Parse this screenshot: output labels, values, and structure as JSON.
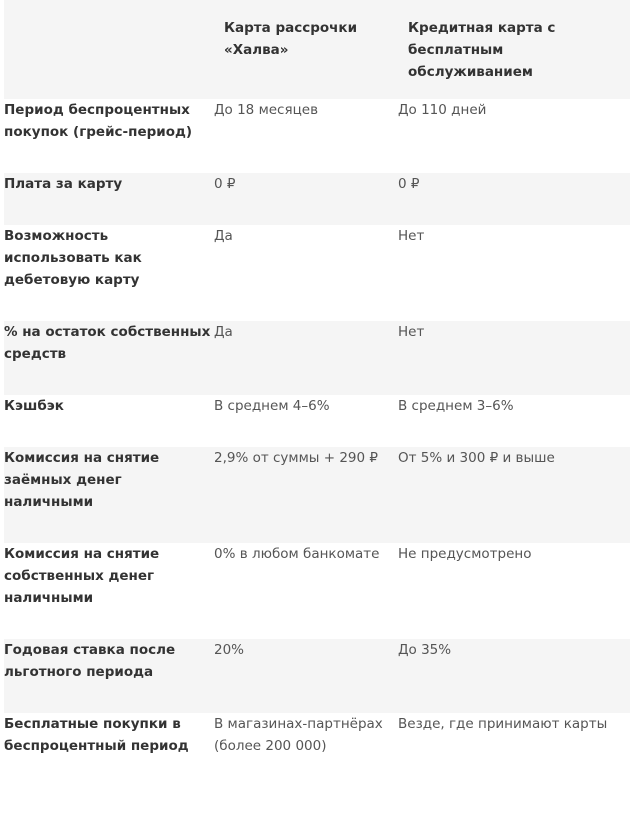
{
  "header": {
    "col1": "",
    "col2": "Карта рассрочки «Халва»",
    "col3": "Кредитная карта с бесплатным обслуживанием"
  },
  "rows": [
    {
      "label": "Период беспроцентных покупок (грейс-период)",
      "halva": "До 18 месяцев",
      "credit": "До 110 дней"
    },
    {
      "label": "Плата за карту",
      "halva": "0 ₽",
      "credit": "0 ₽"
    },
    {
      "label": "Возможность использовать как дебетовую карту",
      "halva": "Да",
      "credit": "Нет"
    },
    {
      "label": "% на остаток собственных средств",
      "halva": "Да",
      "credit": "Нет"
    },
    {
      "label": "Кэшбэк",
      "halva": "В среднем 4–6%",
      "credit": "В среднем 3–6%"
    },
    {
      "label": "Комиссия на снятие заёмных денег наличными",
      "halva": "2,9% от суммы + 290 ₽",
      "credit": "От 5% и 300 ₽ и выше"
    },
    {
      "label": "Комиссия на снятие собственных денег наличными",
      "halva": "0% в любом банкомате",
      "credit": "Не предусмотрено"
    },
    {
      "label": "Годовая ставка после льготного периода",
      "halva": "20%",
      "credit": "До 35%"
    },
    {
      "label": "Бесплатные покупки в беспроцентный период",
      "halva": "В магазинах-партнёрах (более 200 000)",
      "credit": "Везде, где принимают карты"
    }
  ],
  "colors": {
    "shaded_row": "#f5f5f5",
    "plain_row": "#ffffff",
    "label_text": "#333333",
    "value_text": "#555555"
  }
}
